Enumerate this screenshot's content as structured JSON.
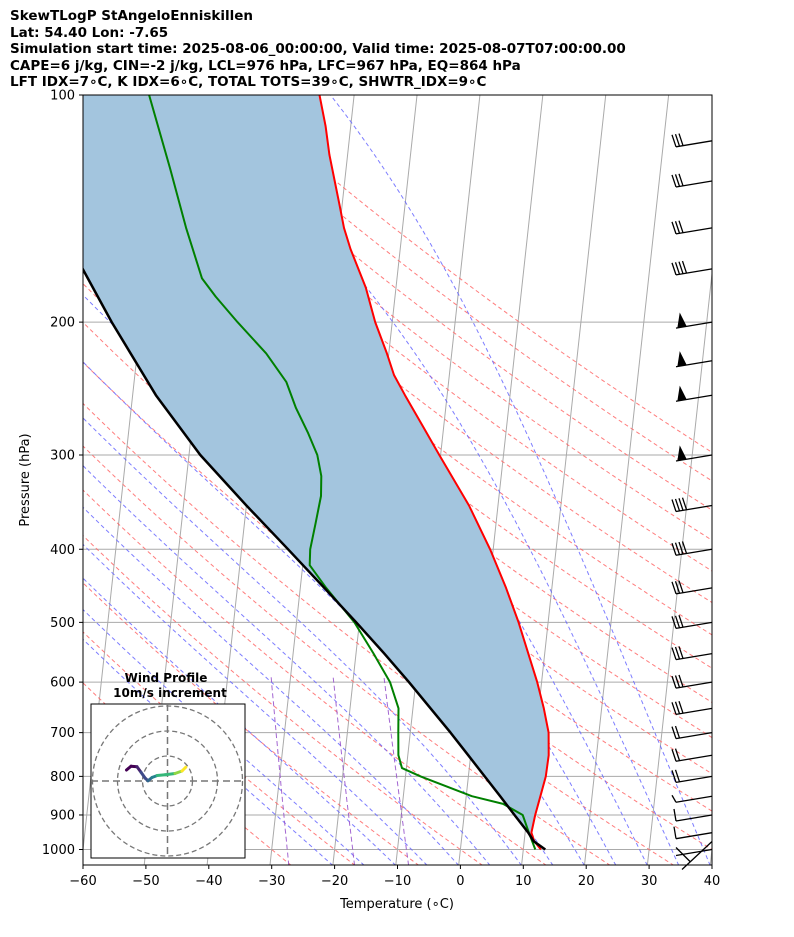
{
  "header": {
    "line1": "SkewTLogP StAngeloEnniskillen",
    "line2": "Lat: 54.40   Lon: -7.65",
    "line3": "Simulation start time: 2025-08-06_00:00:00, Valid time: 2025-08-07T07:00:00.00",
    "line4": "CAPE=6 j/kg, CIN=-2 j/kg, LCL=976 hPa, LFC=967 hPa, EQ=864 hPa",
    "line5": "LFT IDX=7∘C, K IDX=6∘C, TOTAL TOTS=39∘C, SHWTR_IDX=9∘C"
  },
  "colors": {
    "temperature": "#ff0000",
    "dewpoint": "#008000",
    "parcel": "#000000",
    "cape_fill": "#a3c5de",
    "dry_adiabat": "#ff6666",
    "moist_adiabat": "#6666ff",
    "mixing_ratio": "#9955cc",
    "isotherm": "#aaaaaa",
    "isobar": "#aaaaaa"
  },
  "chart_data": {
    "type": "skewt",
    "title": "SkewTLogP StAngeloEnniskillen",
    "xlabel": "Temperature (∘C)",
    "ylabel": "Pressure (hPa)",
    "xlim": [
      -60,
      40
    ],
    "ylim": [
      1050,
      100
    ],
    "x_ticks": [
      -60,
      -50,
      -40,
      -30,
      -20,
      -10,
      0,
      10,
      20,
      30,
      40
    ],
    "y_ticks": [
      1000,
      900,
      800,
      700,
      600,
      500,
      400,
      300,
      200,
      100
    ],
    "series": [
      {
        "name": "Temperature",
        "points": [
          [
            1000,
            12.8
          ],
          [
            975,
            11.6
          ],
          [
            950,
            11.0
          ],
          [
            900,
            11.3
          ],
          [
            850,
            11.8
          ],
          [
            800,
            12.3
          ],
          [
            750,
            12.4
          ],
          [
            700,
            12.0
          ],
          [
            650,
            10.8
          ],
          [
            600,
            9.3
          ],
          [
            550,
            7.4
          ],
          [
            500,
            5.3
          ],
          [
            450,
            2.7
          ],
          [
            400,
            -0.5
          ],
          [
            350,
            -4.6
          ],
          [
            300,
            -10.2
          ],
          [
            275,
            -13.3
          ],
          [
            250,
            -16.7
          ],
          [
            235,
            -18.8
          ],
          [
            220,
            -20.3
          ],
          [
            200,
            -22.7
          ],
          [
            180,
            -24.8
          ],
          [
            160,
            -27.9
          ],
          [
            150,
            -29.3
          ],
          [
            140,
            -30.4
          ],
          [
            130,
            -31.6
          ],
          [
            120,
            -32.9
          ],
          [
            110,
            -34.0
          ],
          [
            100,
            -35.5
          ]
        ]
      },
      {
        "name": "Dewpoint",
        "points": [
          [
            1000,
            11.9
          ],
          [
            950,
            10.6
          ],
          [
            900,
            9.3
          ],
          [
            870,
            6.0
          ],
          [
            850,
            0.9
          ],
          [
            800,
            -7.6
          ],
          [
            780,
            -10.7
          ],
          [
            750,
            -11.5
          ],
          [
            700,
            -11.9
          ],
          [
            650,
            -12.3
          ],
          [
            600,
            -14.1
          ],
          [
            550,
            -17.2
          ],
          [
            500,
            -20.8
          ],
          [
            450,
            -25.9
          ],
          [
            420,
            -28.9
          ],
          [
            400,
            -29.1
          ],
          [
            370,
            -28.7
          ],
          [
            340,
            -28.3
          ],
          [
            320,
            -28.6
          ],
          [
            300,
            -29.6
          ],
          [
            280,
            -31.5
          ],
          [
            260,
            -33.8
          ],
          [
            240,
            -35.8
          ],
          [
            220,
            -39.5
          ],
          [
            200,
            -44.6
          ],
          [
            185,
            -48.5
          ],
          [
            175,
            -51.0
          ],
          [
            150,
            -54.4
          ],
          [
            125,
            -58.0
          ],
          [
            100,
            -62.6
          ]
        ]
      },
      {
        "name": "Parcel",
        "points": [
          [
            1000,
            13.5
          ],
          [
            975,
            11.5
          ],
          [
            950,
            10.5
          ],
          [
            900,
            8.0
          ],
          [
            850,
            5.4
          ],
          [
            800,
            2.6
          ],
          [
            750,
            -0.4
          ],
          [
            700,
            -3.6
          ],
          [
            650,
            -7.2
          ],
          [
            600,
            -11.1
          ],
          [
            550,
            -15.5
          ],
          [
            500,
            -20.5
          ],
          [
            450,
            -26.2
          ],
          [
            400,
            -32.6
          ],
          [
            350,
            -40.0
          ],
          [
            300,
            -48.2
          ],
          [
            250,
            -56.3
          ],
          [
            200,
            -64.6
          ],
          [
            150,
            -74.4
          ],
          [
            120,
            -81.8
          ],
          [
            100,
            -87.0
          ]
        ]
      }
    ],
    "wind_barbs": [
      {
        "p": 1000,
        "style": "cross"
      },
      {
        "p": 950,
        "style": "flag-small"
      },
      {
        "p": 900,
        "style": "flag-small"
      },
      {
        "p": 850,
        "style": "half"
      },
      {
        "p": 800,
        "style": "two"
      },
      {
        "p": 750,
        "style": "two"
      },
      {
        "p": 700,
        "style": "two"
      },
      {
        "p": 650,
        "style": "three"
      },
      {
        "p": 600,
        "style": "three"
      },
      {
        "p": 550,
        "style": "three"
      },
      {
        "p": 500,
        "style": "three"
      },
      {
        "p": 450,
        "style": "three"
      },
      {
        "p": 400,
        "style": "four"
      },
      {
        "p": 350,
        "style": "four"
      },
      {
        "p": 300,
        "style": "pennant"
      },
      {
        "p": 250,
        "style": "pennant"
      },
      {
        "p": 225,
        "style": "pennant"
      },
      {
        "p": 200,
        "style": "pennant"
      },
      {
        "p": 170,
        "style": "four"
      },
      {
        "p": 150,
        "style": "three"
      },
      {
        "p": 130,
        "style": "three"
      },
      {
        "p": 115,
        "style": "three"
      }
    ],
    "hodograph": {
      "title": "Wind Profile",
      "subtitle": "10m/s increment",
      "points": [
        [
          -16.4,
          4.4
        ],
        [
          -14.6,
          5.9
        ],
        [
          -12.2,
          5.7
        ],
        [
          -10.6,
          3.5
        ],
        [
          -8.9,
          1.1
        ],
        [
          -7.8,
          0.1
        ],
        [
          -6.2,
          1.4
        ],
        [
          -4.1,
          2.2
        ],
        [
          -0.9,
          2.5
        ],
        [
          3.0,
          3.0
        ],
        [
          5.8,
          4.0
        ],
        [
          7.3,
          5.5
        ]
      ]
    }
  }
}
